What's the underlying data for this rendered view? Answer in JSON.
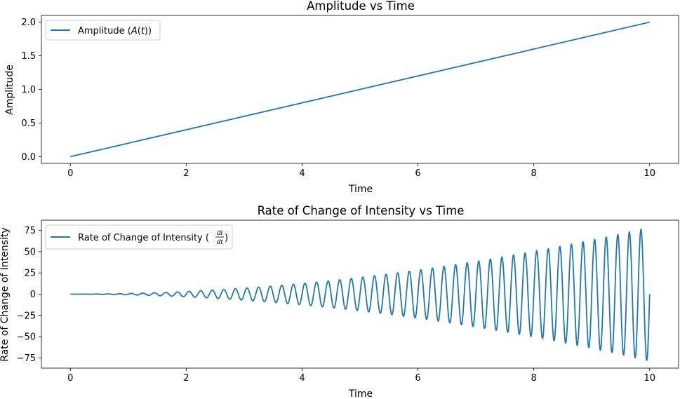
{
  "chart_data": [
    {
      "type": "line",
      "title": "Amplitude vs Time",
      "xlabel": "Time",
      "ylabel": "Amplitude",
      "xlim": [
        -0.5,
        10.5
      ],
      "ylim": [
        -0.1,
        2.1
      ],
      "xticks": [
        0,
        2,
        4,
        6,
        8,
        10
      ],
      "yticks": [
        0.0,
        0.5,
        1.0,
        1.5,
        2.0
      ],
      "ytick_labels": [
        "0.0",
        "0.5",
        "1.0",
        "1.5",
        "2.0"
      ],
      "grid": false,
      "legend_position": "top-left",
      "series": [
        {
          "name": "Amplitude (A(t))",
          "color": "#1f77b4",
          "x": [
            0,
            10
          ],
          "y": [
            0.0,
            2.0
          ]
        }
      ]
    },
    {
      "type": "line",
      "title": "Rate of Change of Intensity vs Time",
      "xlabel": "Time",
      "ylabel": "Rate of Change of Intensity",
      "xlim": [
        -0.5,
        10.5
      ],
      "ylim": [
        -87,
        87
      ],
      "xticks": [
        0,
        2,
        4,
        6,
        8,
        10
      ],
      "yticks": [
        -75,
        -50,
        -25,
        0,
        25,
        50,
        75
      ],
      "ytick_labels": [
        "−75",
        "−50",
        "−25",
        "0",
        "25",
        "50",
        "75"
      ],
      "grid": false,
      "legend_position": "top-left",
      "series": [
        {
          "name": "Rate of Change of Intensity",
          "color": "#1f77b4",
          "x_range": [
            0,
            10
          ],
          "cycles": 50,
          "peak_envelope": [
            {
              "t": 0,
              "value": 0
            },
            {
              "t": 2,
              "value": 3.2
            },
            {
              "t": 4,
              "value": 12.6
            },
            {
              "t": 6,
              "value": 28.3
            },
            {
              "t": 8,
              "value": 50.3
            },
            {
              "t": 10,
              "value": 78.6
            }
          ]
        }
      ]
    }
  ]
}
